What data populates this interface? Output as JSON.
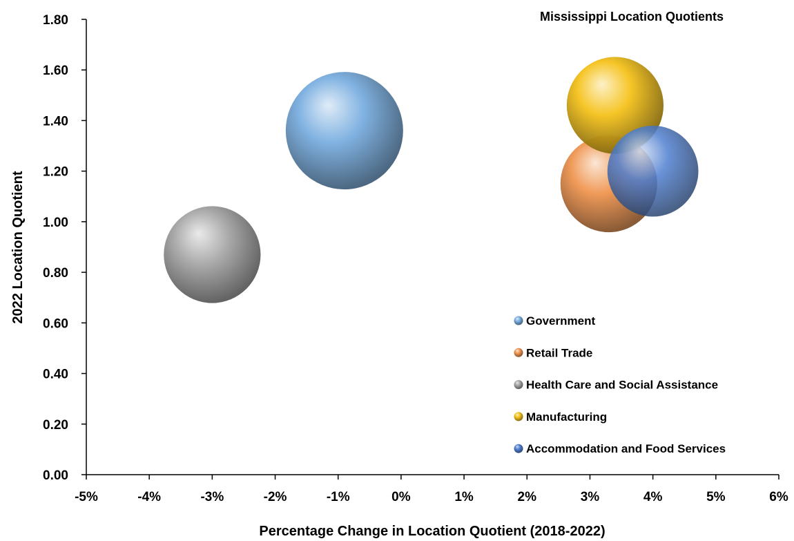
{
  "chart_data": {
    "type": "bubble",
    "title": "Mississippi Location Quotients",
    "xlabel": "Percentage Change in Location Quotient (2018-2022)",
    "ylabel": "2022 Location Quotient",
    "xlim": [
      -5,
      6
    ],
    "ylim": [
      0,
      1.8
    ],
    "x_ticks": [
      "-5%",
      "-4%",
      "-3%",
      "-2%",
      "-1%",
      "0%",
      "1%",
      "2%",
      "3%",
      "4%",
      "5%",
      "6%"
    ],
    "y_ticks": [
      "0.00",
      "0.20",
      "0.40",
      "0.60",
      "0.80",
      "1.00",
      "1.20",
      "1.40",
      "1.60",
      "1.80"
    ],
    "legend_position": "inside-bottom-right",
    "series": [
      {
        "name": "Government",
        "x": -0.9,
        "y": 1.36,
        "size": 100,
        "color": "#7aaee0"
      },
      {
        "name": "Retail Trade",
        "x": 3.3,
        "y": 1.15,
        "size": 68,
        "color": "#ef9550"
      },
      {
        "name": "Health Care and Social Assistance",
        "x": -3.0,
        "y": 0.87,
        "size": 68,
        "color": "#a6a6a6"
      },
      {
        "name": "Manufacturing",
        "x": 3.4,
        "y": 1.46,
        "size": 68,
        "color": "#f5c21b"
      },
      {
        "name": "Accommodation and Food Services",
        "x": 4.0,
        "y": 1.2,
        "size": 60,
        "color": "#4f7fd0"
      }
    ]
  }
}
